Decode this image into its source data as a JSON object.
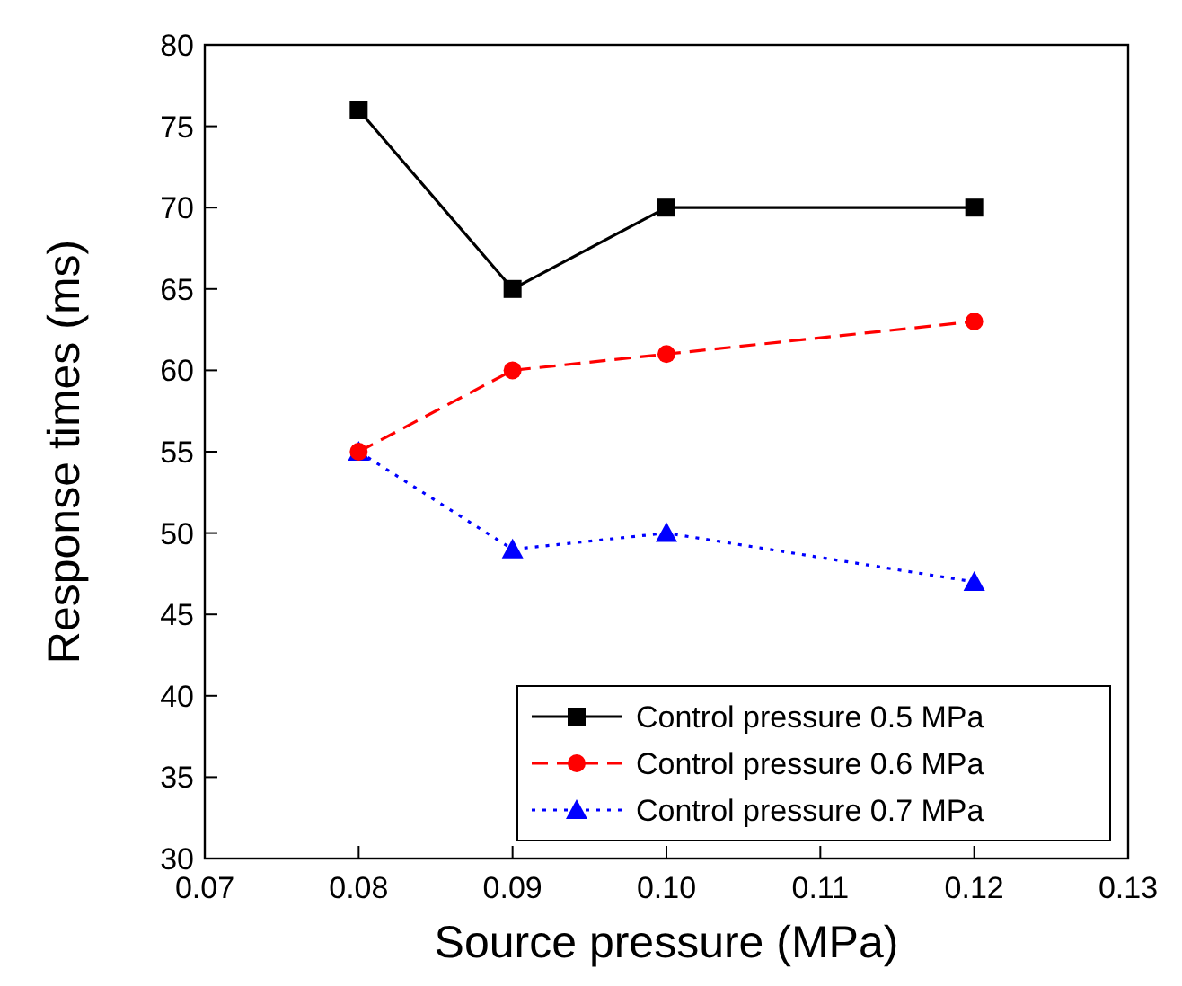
{
  "chart_data": {
    "type": "line",
    "xlabel": "Source pressure (MPa)",
    "ylabel": "Response times (ms)",
    "x": [
      0.08,
      0.09,
      0.1,
      0.12
    ],
    "xlim": [
      0.07,
      0.13
    ],
    "xticks": [
      {
        "value": 0.07,
        "label": "0.07"
      },
      {
        "value": 0.08,
        "label": "0.08"
      },
      {
        "value": 0.09,
        "label": "0.09"
      },
      {
        "value": 0.1,
        "label": "0.10"
      },
      {
        "value": 0.11,
        "label": "0.11"
      },
      {
        "value": 0.12,
        "label": "0.12"
      },
      {
        "value": 0.13,
        "label": "0.13"
      }
    ],
    "ylim": [
      30,
      80
    ],
    "yticks": [
      30,
      35,
      40,
      45,
      50,
      55,
      60,
      65,
      70,
      75,
      80
    ],
    "legend": "bottom right",
    "grid": false,
    "series": [
      {
        "name": "Control pressure 0.5 MPa",
        "color": "#000000",
        "marker": "square",
        "line_style": "solid",
        "values": [
          76,
          65,
          70,
          70
        ]
      },
      {
        "name": "Control pressure 0.6 MPa",
        "color": "#ff0000",
        "marker": "circle",
        "line_style": "dashed",
        "values": [
          55,
          60,
          61,
          63
        ]
      },
      {
        "name": "Control pressure 0.7 MPa",
        "color": "#0000ff",
        "marker": "triangle",
        "line_style": "dotted",
        "values": [
          55,
          49,
          50,
          47
        ]
      }
    ]
  }
}
